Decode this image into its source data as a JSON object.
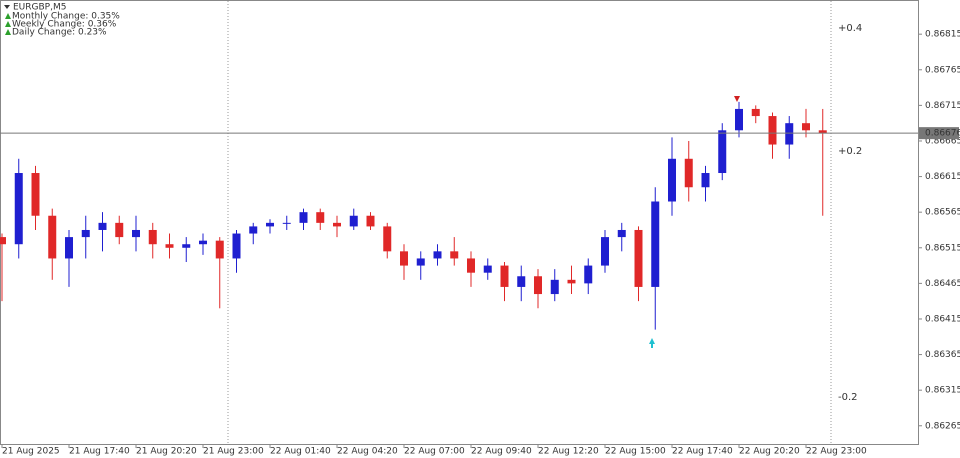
{
  "chart_data": {
    "type": "candlestick",
    "title": "EURGBP,M5",
    "annotations": [
      "Monthly Change: 0.35%",
      "Weekly Change: 0.36%",
      "Daily Change: 0.23%"
    ],
    "annotation_color": "#2ca02c",
    "level_labels": [
      {
        "label": "+0.4",
        "color": "#2ca02c"
      },
      {
        "label": "+0.2",
        "color": "#2ca02c"
      },
      {
        "label": "-0.2",
        "color": "#e03030"
      }
    ],
    "categories": [
      "21 Aug 2025",
      null,
      null,
      null,
      "21 Aug 17:40",
      null,
      null,
      null,
      "21 Aug 20:20",
      null,
      null,
      null,
      "21 Aug 23:00",
      null,
      null,
      null,
      "22 Aug 01:40",
      null,
      null,
      null,
      "22 Aug 04:20",
      null,
      null,
      null,
      "22 Aug 07:00",
      null,
      null,
      null,
      "22 Aug 09:40",
      null,
      null,
      null,
      "22 Aug 12:20",
      null,
      null,
      null,
      "22 Aug 15:00",
      null,
      null,
      null,
      "22 Aug 17:40",
      null,
      null,
      null,
      "22 Aug 20:20",
      null,
      null,
      null,
      "22 Aug 23:00",
      null
    ],
    "open": [
      0.8653,
      0.8652,
      0.8662,
      0.8656,
      0.865,
      0.8653,
      0.8654,
      0.8655,
      0.8653,
      0.8654,
      0.8652,
      0.86515,
      0.8652,
      0.86525,
      0.865,
      0.86535,
      0.86545,
      0.8655,
      0.8655,
      0.86565,
      0.8655,
      0.86545,
      0.8656,
      0.86545,
      0.8651,
      0.8649,
      0.865,
      0.8651,
      0.865,
      0.8648,
      0.8649,
      0.8646,
      0.86475,
      0.8645,
      0.8647,
      0.86465,
      0.8649,
      0.8653,
      0.8654,
      0.8646,
      0.8658,
      0.8664,
      0.866,
      0.8662,
      0.8668,
      0.8671,
      0.867,
      0.8666,
      0.8669,
      0.8668
    ],
    "high": [
      0.86535,
      0.8664,
      0.8663,
      0.8657,
      0.8654,
      0.8656,
      0.86565,
      0.8656,
      0.8656,
      0.8655,
      0.86535,
      0.8653,
      0.86535,
      0.8653,
      0.8654,
      0.8655,
      0.86555,
      0.8656,
      0.8657,
      0.8657,
      0.8656,
      0.8657,
      0.86565,
      0.8655,
      0.8652,
      0.8651,
      0.8652,
      0.8653,
      0.8651,
      0.865,
      0.86495,
      0.8649,
      0.86485,
      0.86485,
      0.8649,
      0.865,
      0.8654,
      0.8655,
      0.86545,
      0.866,
      0.8667,
      0.86665,
      0.8663,
      0.8669,
      0.8672,
      0.86715,
      0.86705,
      0.867,
      0.8671,
      0.8671
    ],
    "low": [
      0.8644,
      0.865,
      0.8654,
      0.8647,
      0.8646,
      0.865,
      0.8651,
      0.8652,
      0.8651,
      0.865,
      0.865,
      0.86495,
      0.86505,
      0.8643,
      0.8648,
      0.8652,
      0.86535,
      0.8654,
      0.8654,
      0.8654,
      0.8653,
      0.8654,
      0.8654,
      0.865,
      0.8647,
      0.8647,
      0.8649,
      0.8649,
      0.8646,
      0.8647,
      0.8644,
      0.8644,
      0.8643,
      0.8644,
      0.8645,
      0.8645,
      0.8648,
      0.8651,
      0.8644,
      0.864,
      0.8656,
      0.8658,
      0.8658,
      0.8661,
      0.8667,
      0.8669,
      0.8664,
      0.8664,
      0.8667,
      0.8656
    ],
    "close": [
      0.8652,
      0.8662,
      0.8656,
      0.865,
      0.8653,
      0.8654,
      0.8655,
      0.8653,
      0.8654,
      0.8652,
      0.86515,
      0.8652,
      0.86525,
      0.865,
      0.86535,
      0.86545,
      0.8655,
      0.8655,
      0.86565,
      0.8655,
      0.86545,
      0.8656,
      0.86545,
      0.8651,
      0.8649,
      0.865,
      0.8651,
      0.865,
      0.8648,
      0.8649,
      0.8646,
      0.86475,
      0.8645,
      0.8647,
      0.86465,
      0.8649,
      0.8653,
      0.8654,
      0.8646,
      0.8658,
      0.8664,
      0.866,
      0.8662,
      0.8668,
      0.8671,
      0.867,
      0.8666,
      0.8669,
      0.8668,
      0.86676
    ],
    "up_color": "#1f1fd0",
    "down_color": "#e02828",
    "current_price": 0.86676,
    "ylim": [
      0.86238,
      0.86863
    ],
    "yticks": [
      0.86815,
      0.86765,
      0.86715,
      0.86665,
      0.86615,
      0.86565,
      0.86515,
      0.86465,
      0.86415,
      0.86365,
      0.86315,
      0.86265
    ]
  }
}
